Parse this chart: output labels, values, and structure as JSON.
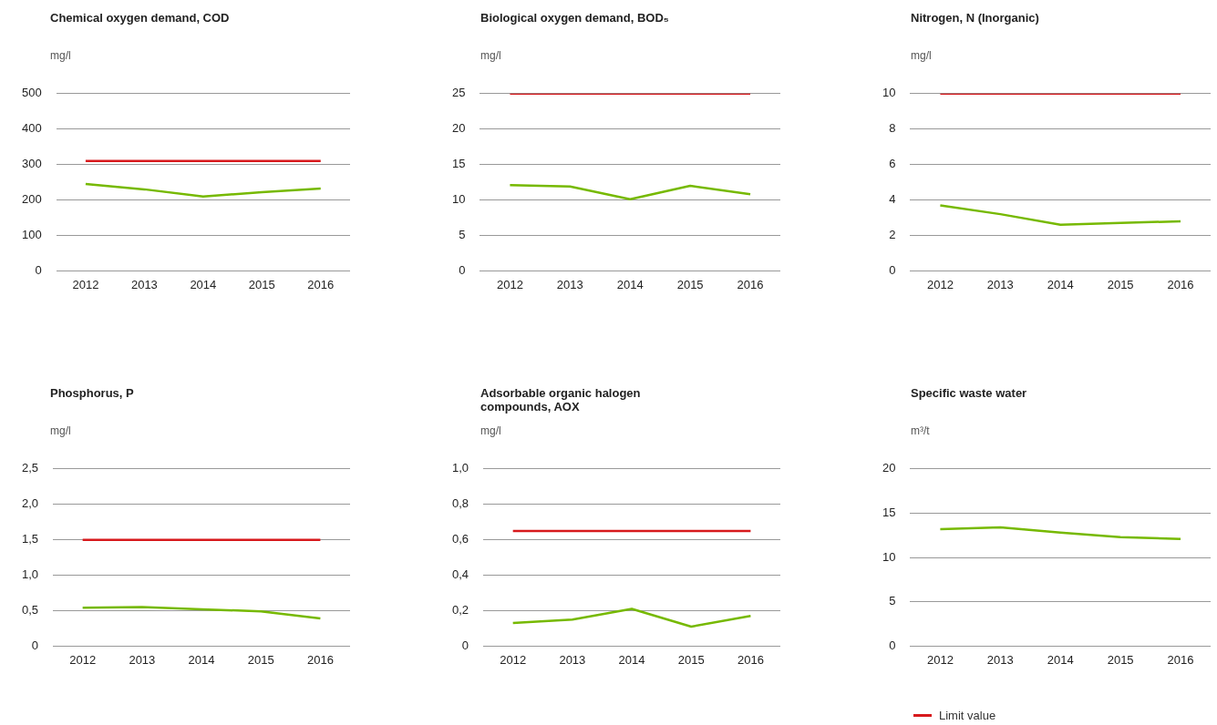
{
  "chart_data": [
    {
      "type": "line",
      "title": "Chemical oxygen demand, COD",
      "ylabel": "mg/l",
      "categories": [
        "2012",
        "2013",
        "2014",
        "2015",
        "2016"
      ],
      "ylim": [
        0,
        500
      ],
      "yticks": [
        0,
        100,
        200,
        300,
        400,
        500
      ],
      "grid": "y",
      "marker": "none",
      "series": [
        {
          "color": "#d7191c",
          "values": [
            310,
            310,
            310,
            310,
            310
          ]
        },
        {
          "color": "#76b900",
          "values": [
            245,
            230,
            210,
            222,
            232
          ]
        }
      ]
    },
    {
      "type": "line",
      "title": "Biological oxygen demand, BOD₅",
      "ylabel": "mg/l",
      "categories": [
        "2012",
        "2013",
        "2014",
        "2015",
        "2016"
      ],
      "ylim": [
        0,
        25
      ],
      "yticks": [
        0,
        5,
        10,
        15,
        20,
        25
      ],
      "grid": "y",
      "marker": "none",
      "series": [
        {
          "color": "#d7191c",
          "values": [
            25,
            25,
            25,
            25,
            25
          ]
        },
        {
          "color": "#76b900",
          "values": [
            12.1,
            11.9,
            10.1,
            12.0,
            10.8
          ]
        }
      ]
    },
    {
      "type": "line",
      "title": "Nitrogen, N (Inorganic)",
      "ylabel": "mg/l",
      "categories": [
        "2012",
        "2013",
        "2014",
        "2015",
        "2016"
      ],
      "ylim": [
        0,
        10
      ],
      "yticks": [
        0,
        2,
        4,
        6,
        8,
        10
      ],
      "grid": "y",
      "marker": "none",
      "series": [
        {
          "color": "#d7191c",
          "values": [
            10,
            10,
            10,
            10,
            10
          ]
        },
        {
          "color": "#76b900",
          "values": [
            3.7,
            3.2,
            2.6,
            2.7,
            2.8
          ]
        }
      ]
    },
    {
      "type": "line",
      "title": "Phosphorus, P",
      "ylabel": "mg/l",
      "categories": [
        "2012",
        "2013",
        "2014",
        "2015",
        "2016"
      ],
      "ylim": [
        0,
        2.5
      ],
      "yticks": [
        0,
        {
          "value": 0.5,
          "label": "0,5"
        },
        {
          "value": 1,
          "label": "1,0"
        },
        {
          "value": 1.5,
          "label": "1,5"
        },
        {
          "value": 2,
          "label": "2,0"
        },
        {
          "value": 2.5,
          "label": "2,5"
        }
      ],
      "grid": "y",
      "marker": "none",
      "series": [
        {
          "color": "#d7191c",
          "values": [
            1.5,
            1.5,
            1.5,
            1.5,
            1.5
          ]
        },
        {
          "color": "#76b900",
          "values": [
            0.54,
            0.55,
            0.52,
            0.49,
            0.39
          ]
        }
      ]
    },
    {
      "type": "line",
      "title": "Adsorbable organic halogen compounds, AOX",
      "ylabel": "mg/l",
      "categories": [
        "2012",
        "2013",
        "2014",
        "2015",
        "2016"
      ],
      "ylim": [
        0,
        1
      ],
      "yticks": [
        0,
        {
          "value": 0.2,
          "label": "0,2"
        },
        {
          "value": 0.4,
          "label": "0,4"
        },
        {
          "value": 0.6,
          "label": "0,6"
        },
        {
          "value": 0.8,
          "label": "0,8"
        },
        {
          "value": 1,
          "label": "1,0"
        }
      ],
      "grid": "y",
      "marker": "none",
      "legend": "bottom right",
      "series": [
        {
          "name": "Limit value",
          "color": "#d7191c",
          "values": [
            0.65,
            0.65,
            0.65,
            0.65,
            0.65
          ]
        },
        {
          "color": "#76b900",
          "values": [
            0.13,
            0.15,
            0.21,
            0.11,
            0.17
          ]
        }
      ]
    },
    {
      "type": "line",
      "title": "Specific waste water",
      "ylabel": "m³/t",
      "categories": [
        "2012",
        "2013",
        "2014",
        "2015",
        "2016"
      ],
      "ylim": [
        0,
        20
      ],
      "yticks": [
        0,
        5,
        10,
        15,
        20
      ],
      "grid": "y",
      "marker": "none",
      "series": [
        {
          "color": "#76b900",
          "values": [
            13.2,
            13.4,
            12.8,
            12.3,
            12.1
          ]
        }
      ]
    }
  ]
}
